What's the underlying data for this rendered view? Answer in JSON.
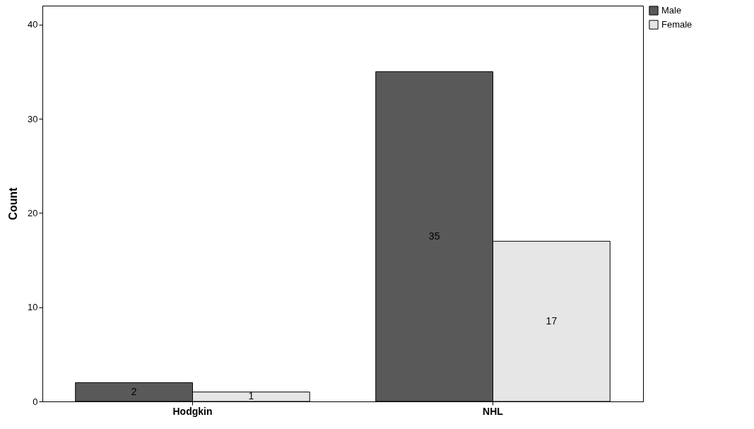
{
  "chart_data": {
    "type": "bar",
    "ylabel": "Count",
    "categories": [
      "Hodgkin",
      "NHL"
    ],
    "series": [
      {
        "name": "Male",
        "color": "#595959",
        "values": [
          2,
          35
        ]
      },
      {
        "name": "Female",
        "color": "#e6e6e6",
        "values": [
          1,
          17
        ]
      }
    ],
    "ylim": [
      0,
      42
    ],
    "yticks": [
      0,
      10,
      20,
      30,
      40
    ],
    "grid": false,
    "legend": "top right",
    "data_labels": true
  }
}
